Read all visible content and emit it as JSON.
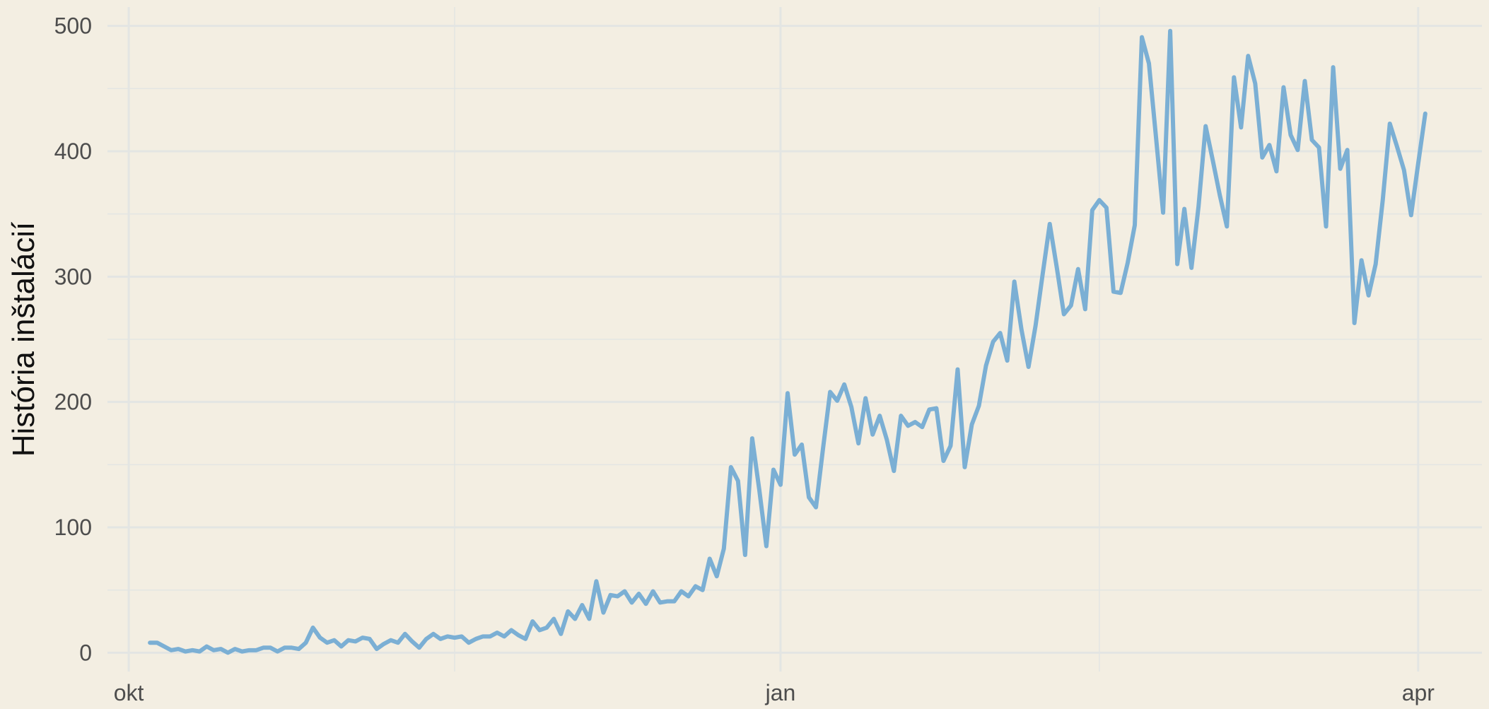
{
  "chart_data": {
    "type": "line",
    "title": "",
    "xlabel": "",
    "ylabel": "História inštalácií",
    "x_start": "2018-10-04",
    "x_end": "2019-04-04",
    "xlim": [
      "2018-09-28",
      "2019-04-10"
    ],
    "ylim": [
      -15,
      515
    ],
    "y_ticks": [
      0,
      100,
      200,
      300,
      400,
      500
    ],
    "x_ticks": [
      {
        "date": "2018-10-01",
        "label": "okt"
      },
      {
        "date": "2019-01-01",
        "label": "jan"
      },
      {
        "date": "2019-04-01",
        "label": "apr"
      }
    ],
    "x_minor_ticks": [
      "2018-11-16",
      "2019-02-15"
    ],
    "grid": true,
    "legend": "none",
    "colors": {
      "line": "#7bafd4",
      "background": "#f3eee2",
      "grid": "#e3e5e3"
    },
    "series": [
      {
        "values": [
          8,
          8,
          5,
          2,
          3,
          1,
          2,
          1,
          5,
          2,
          3,
          0,
          3,
          1,
          2,
          2,
          4,
          4,
          1,
          4,
          4,
          3,
          8,
          20,
          12,
          8,
          10,
          5,
          10,
          9,
          12,
          11,
          3,
          7,
          10,
          8,
          15,
          9,
          4,
          11,
          15,
          11,
          13,
          12,
          13,
          8,
          11,
          13,
          13,
          16,
          13,
          18,
          14,
          11,
          25,
          18,
          20,
          27,
          15,
          33,
          27,
          38,
          27,
          57,
          32,
          46,
          45,
          49,
          40,
          47,
          39,
          49,
          40,
          41,
          41,
          49,
          45,
          53,
          50,
          75,
          61,
          83,
          148,
          137,
          78,
          171,
          130,
          85,
          146,
          134,
          207,
          158,
          166,
          124,
          116,
          163,
          208,
          201,
          214,
          196,
          167,
          203,
          174,
          189,
          170,
          145,
          189,
          181,
          184,
          180,
          194,
          195,
          153,
          165,
          226,
          148,
          182,
          197,
          229,
          248,
          255,
          233,
          296,
          258,
          228,
          261,
          302,
          342,
          307,
          270,
          277,
          306,
          274,
          353,
          361,
          355,
          288,
          287,
          311,
          341,
          491,
          470,
          411,
          351,
          496,
          310,
          354,
          307,
          356,
          420,
          393,
          365,
          340,
          459,
          419,
          476,
          454,
          395,
          405,
          384,
          451,
          413,
          401,
          456,
          409,
          403,
          340,
          467,
          386,
          401,
          263,
          313,
          285,
          310,
          361,
          422,
          404,
          385,
          349,
          390,
          430
        ]
      }
    ]
  }
}
